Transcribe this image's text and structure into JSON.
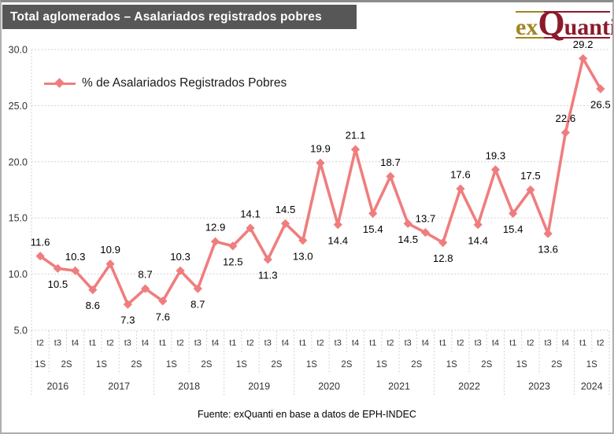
{
  "header": {
    "title": "Total aglomerados – Asalariados registrados pobres",
    "title_bg": "#575757",
    "logo": {
      "part1": "ex",
      "part2": "Q",
      "part3": "uanti",
      "gold": "#A08620",
      "red": "#8C1A2B"
    }
  },
  "footer": {
    "source": "Fuente: exQuanti en base a datos de EPH-INDEC"
  },
  "chart_data": {
    "type": "line",
    "title": "",
    "legend_position": "top-left-inside",
    "grid": "horizontal-dotted",
    "line_color": "#F07D7E",
    "ylim": [
      5,
      30
    ],
    "ytick_labels": [
      "5.0",
      "10.0",
      "15.0",
      "20.0",
      "25.0",
      "30.0"
    ],
    "value_decimals": 1,
    "series": [
      {
        "name": "% de Asalariados Registrados Pobres",
        "color": "#F07D7E",
        "values": [
          11.6,
          10.5,
          10.3,
          8.6,
          10.9,
          7.3,
          8.7,
          7.6,
          10.3,
          8.7,
          12.9,
          12.5,
          14.1,
          11.3,
          14.5,
          13.0,
          19.9,
          14.4,
          21.1,
          15.4,
          18.7,
          14.5,
          13.7,
          12.8,
          17.6,
          14.4,
          19.3,
          15.4,
          17.5,
          13.6,
          22.6,
          29.2,
          26.5
        ]
      }
    ],
    "label_positions": [
      "above",
      "below",
      "above",
      "below",
      "above",
      "below",
      "above",
      "below",
      "above",
      "below",
      "above",
      "below",
      "above",
      "below",
      "above",
      "below",
      "above",
      "below",
      "above",
      "below",
      "above",
      "below",
      "above",
      "below",
      "above",
      "below",
      "above",
      "below",
      "above",
      "below",
      "above",
      "above",
      "below"
    ],
    "x_years": [
      {
        "label": "2016",
        "quarters": [
          "t2",
          "t3",
          "t4"
        ],
        "semesters": [
          {
            "label": "1S",
            "count": 1
          },
          {
            "label": "2S",
            "count": 2
          }
        ]
      },
      {
        "label": "2017",
        "quarters": [
          "t1",
          "t2",
          "t3",
          "t4"
        ],
        "semesters": [
          {
            "label": "1S",
            "count": 2
          },
          {
            "label": "2S",
            "count": 2
          }
        ]
      },
      {
        "label": "2018",
        "quarters": [
          "t1",
          "t2",
          "t3",
          "t4"
        ],
        "semesters": [
          {
            "label": "1S",
            "count": 2
          },
          {
            "label": "2S",
            "count": 2
          }
        ]
      },
      {
        "label": "2019",
        "quarters": [
          "t1",
          "t2",
          "t3",
          "t4"
        ],
        "semesters": [
          {
            "label": "1S",
            "count": 2
          },
          {
            "label": "2S",
            "count": 2
          }
        ]
      },
      {
        "label": "2020",
        "quarters": [
          "t1",
          "t2",
          "t3",
          "t4"
        ],
        "semesters": [
          {
            "label": "1S",
            "count": 2
          },
          {
            "label": "2S",
            "count": 2
          }
        ]
      },
      {
        "label": "2021",
        "quarters": [
          "t1",
          "t2",
          "t3",
          "t4"
        ],
        "semesters": [
          {
            "label": "1S",
            "count": 2
          },
          {
            "label": "2S",
            "count": 2
          }
        ]
      },
      {
        "label": "2022",
        "quarters": [
          "t1",
          "t2",
          "t3",
          "t4"
        ],
        "semesters": [
          {
            "label": "1S",
            "count": 2
          },
          {
            "label": "2S",
            "count": 2
          }
        ]
      },
      {
        "label": "2023",
        "quarters": [
          "t1",
          "t2",
          "t3",
          "t4"
        ],
        "semesters": [
          {
            "label": "1S",
            "count": 2
          },
          {
            "label": "2S",
            "count": 2
          }
        ]
      },
      {
        "label": "2024",
        "quarters": [
          "t1",
          "t2"
        ],
        "semesters": [
          {
            "label": "1S",
            "count": 2
          }
        ]
      }
    ]
  }
}
